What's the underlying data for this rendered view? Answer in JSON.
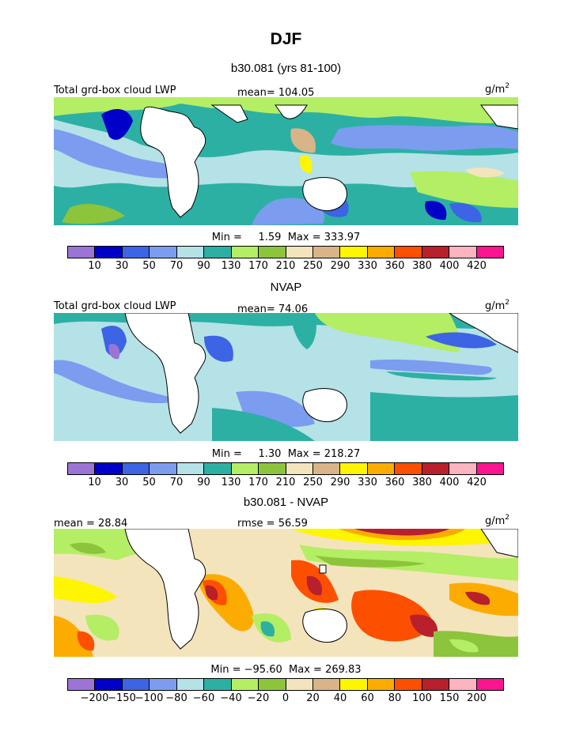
{
  "figure": {
    "title": "DJF"
  },
  "chart_data": [
    {
      "type": "heatmap",
      "title": "b30.081 (yrs 81-100)",
      "left_label": "Total grd-box cloud LWP",
      "center_label": "mean=  104.05",
      "units": "g/m",
      "units_exp": "2",
      "min_label": "Min =     1.59",
      "max_label": "Max = 333.97",
      "mean": 104.05,
      "min": 1.59,
      "max": 333.97,
      "colorbar_ticks": [
        "10",
        "30",
        "50",
        "70",
        "90",
        "130",
        "170",
        "210",
        "250",
        "290",
        "330",
        "360",
        "380",
        "400",
        "420"
      ],
      "colors": [
        "#9c74d6",
        "#0000c8",
        "#3c64e4",
        "#7c9cf0",
        "#b4e2e6",
        "#2cb0a4",
        "#b4ee64",
        "#8cc43c",
        "#f4e4bc",
        "#d8b488",
        "#fef500",
        "#fcac00",
        "#fc5000",
        "#b8202c",
        "#fcb4c0",
        "#fc1490"
      ]
    },
    {
      "type": "heatmap",
      "title": "NVAP",
      "left_label": "Total grd-box cloud LWP",
      "center_label": "mean=   74.06",
      "units": "g/m",
      "units_exp": "2",
      "min_label": "Min =     1.30",
      "max_label": "Max = 218.27",
      "mean": 74.06,
      "min": 1.3,
      "max": 218.27,
      "colorbar_ticks": [
        "10",
        "30",
        "50",
        "70",
        "90",
        "130",
        "170",
        "210",
        "250",
        "290",
        "330",
        "360",
        "380",
        "400",
        "420"
      ],
      "colors": [
        "#9c74d6",
        "#0000c8",
        "#3c64e4",
        "#7c9cf0",
        "#b4e2e6",
        "#2cb0a4",
        "#b4ee64",
        "#8cc43c",
        "#f4e4bc",
        "#d8b488",
        "#fef500",
        "#fcac00",
        "#fc5000",
        "#b8202c",
        "#fcb4c0",
        "#fc1490"
      ]
    },
    {
      "type": "heatmap",
      "title": "b30.081 - NVAP",
      "left_label": "mean =   28.84",
      "center_label": "rmse =   56.59",
      "units": "g/m",
      "units_exp": "2",
      "min_label": "Min = −95.60",
      "max_label": "Max = 269.83",
      "mean": 28.84,
      "rmse": 56.59,
      "min": -95.6,
      "max": 269.83,
      "colorbar_ticks": [
        "−200",
        "−150",
        "−100",
        "−80",
        "−60",
        "−40",
        "−20",
        "0",
        "20",
        "40",
        "60",
        "80",
        "100",
        "150",
        "200"
      ],
      "colors": [
        "#9c74d6",
        "#0000c8",
        "#3c64e4",
        "#7c9cf0",
        "#b4e2e6",
        "#2cb0a4",
        "#b4ee64",
        "#8cc43c",
        "#f4e4bc",
        "#d8b488",
        "#fef500",
        "#fcac00",
        "#fc5000",
        "#b8202c",
        "#fcb4c0",
        "#fc1490"
      ]
    }
  ]
}
